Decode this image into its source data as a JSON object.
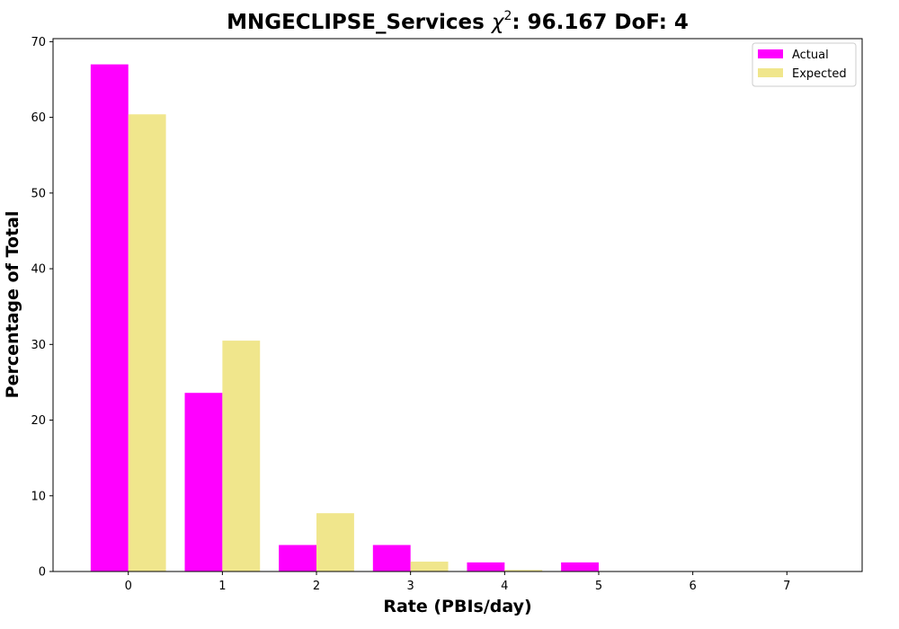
{
  "chart_data": {
    "type": "bar",
    "title_main": "MNGECLIPSE_Services ",
    "title_chi": "χ",
    "title_sup": "2",
    "title_rest": ": 96.167 DoF: 4",
    "xlabel": "Rate (PBIs/day)",
    "ylabel": "Percentage of Total",
    "categories": [
      "0",
      "1",
      "2",
      "3",
      "4",
      "5",
      "6",
      "7"
    ],
    "series": [
      {
        "name": "Actual",
        "color": "#ff00ff",
        "values": [
          67.0,
          23.6,
          3.5,
          3.5,
          1.2,
          1.2,
          0,
          0
        ]
      },
      {
        "name": "Expected",
        "color": "#f0e68c",
        "values": [
          60.4,
          30.5,
          7.7,
          1.3,
          0.2,
          0,
          0,
          0
        ]
      }
    ],
    "yticks": [
      0,
      10,
      20,
      30,
      40,
      50,
      60,
      70
    ],
    "xlim": [
      -0.8,
      7.8
    ],
    "ylim": [
      0,
      70.4
    ],
    "legend_position": "top-right"
  }
}
